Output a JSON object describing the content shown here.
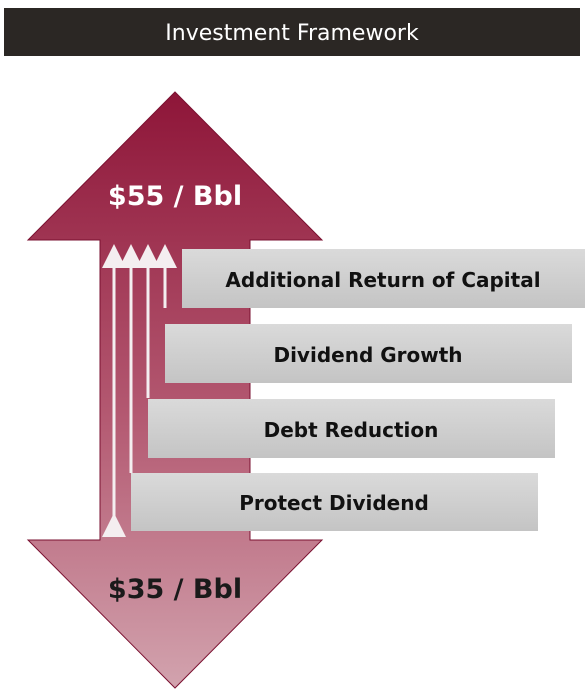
{
  "header": {
    "title": "Investment Framework"
  },
  "arrows": {
    "top_label": "$55 / Bbl",
    "bottom_label": "$35 / Bbl"
  },
  "tiers": [
    "Additional Return of Capital",
    "Dividend Growth",
    "Debt Reduction",
    "Protect Dividend"
  ]
}
